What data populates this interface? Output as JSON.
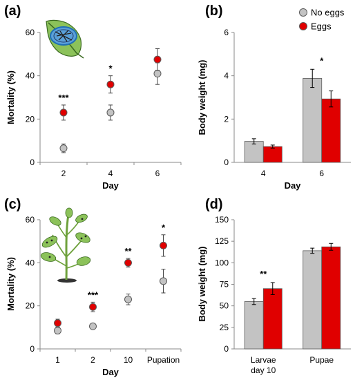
{
  "colors": {
    "no_eggs": "#c3c3c3",
    "eggs": "#e00000",
    "edge": "#5a5a5a",
    "axis": "#888888"
  },
  "legend": {
    "placement": "top-right",
    "entries": [
      "No eggs",
      "Eggs"
    ]
  },
  "chart_data": [
    {
      "panel": "(a)",
      "type": "scatter",
      "xlabel": "Day",
      "ylabel": "Mortality (%)",
      "categories": [
        "2",
        "4",
        "6"
      ],
      "ylim": [
        0,
        60
      ],
      "yticks": [
        0,
        20,
        40,
        60
      ],
      "grid": false,
      "series": [
        {
          "name": "No eggs",
          "values": [
            6.5,
            23,
            41
          ],
          "err": [
            2,
            3.5,
            5
          ]
        },
        {
          "name": "Eggs",
          "values": [
            23,
            36,
            47.5
          ],
          "err": [
            3.5,
            4,
            5
          ]
        }
      ],
      "annotations": [
        "***",
        "*",
        ""
      ],
      "inset": "leaf-icon"
    },
    {
      "panel": "(b)",
      "type": "bar",
      "xlabel": "Day",
      "ylabel": "Body weight (mg)",
      "categories": [
        "4",
        "6"
      ],
      "ylim": [
        0,
        6
      ],
      "yticks": [
        0,
        2,
        4,
        6
      ],
      "grid": false,
      "series": [
        {
          "name": "No eggs",
          "values": [
            0.97,
            3.88
          ],
          "err": [
            0.12,
            0.42
          ]
        },
        {
          "name": "Eggs",
          "values": [
            0.73,
            2.93
          ],
          "err": [
            0.07,
            0.37
          ]
        }
      ],
      "annotations": [
        "",
        "*"
      ]
    },
    {
      "panel": "(c)",
      "type": "scatter",
      "xlabel": "Day",
      "ylabel": "Mortality (%)",
      "categories": [
        "1",
        "2",
        "10",
        "Pupation"
      ],
      "ylim": [
        0,
        60
      ],
      "yticks": [
        0,
        20,
        40,
        60
      ],
      "grid": false,
      "series": [
        {
          "name": "No eggs",
          "values": [
            8.5,
            10.5,
            23,
            31.5
          ],
          "err": [
            1.5,
            1.2,
            2.5,
            5.5
          ]
        },
        {
          "name": "Eggs",
          "values": [
            12,
            19.5,
            40,
            48
          ],
          "err": [
            1.8,
            2.2,
            2,
            5
          ]
        }
      ],
      "annotations": [
        "",
        "***",
        "**",
        "*"
      ],
      "inset": "plant-icon"
    },
    {
      "panel": "(d)",
      "type": "bar",
      "xlabel": "",
      "ylabel": "Body weight (mg)",
      "categories": [
        "Larvae day 10",
        "Pupae"
      ],
      "category_lines": [
        [
          "Larvae",
          "day 10"
        ],
        [
          "Pupae"
        ]
      ],
      "ylim": [
        0,
        150
      ],
      "yticks": [
        0,
        25,
        50,
        75,
        100,
        125,
        150
      ],
      "grid": false,
      "series": [
        {
          "name": "No eggs",
          "values": [
            55,
            114
          ],
          "err": [
            3.5,
            3
          ]
        },
        {
          "name": "Eggs",
          "values": [
            70,
            118.5
          ],
          "err": [
            7,
            4
          ]
        }
      ],
      "annotations": [
        "**",
        ""
      ]
    }
  ]
}
